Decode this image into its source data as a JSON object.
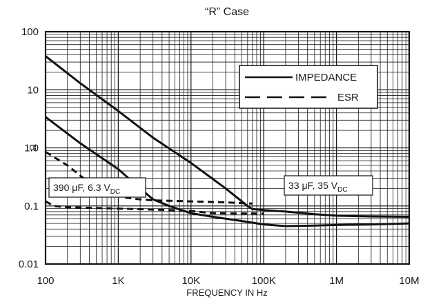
{
  "chart_data": {
    "type": "line",
    "title": "“R” Case",
    "xlabel": "FREQUENCY IN Hz",
    "ylabel": "Ω",
    "x_scale": "log",
    "y_scale": "log",
    "xlim": [
      100,
      10000000
    ],
    "ylim": [
      0.01,
      100
    ],
    "grid": true,
    "x_ticks": [
      {
        "value": 100,
        "label": "100"
      },
      {
        "value": 1000,
        "label": "1K"
      },
      {
        "value": 10000,
        "label": "10K"
      },
      {
        "value": 100000,
        "label": "100K"
      },
      {
        "value": 1000000,
        "label": "1M"
      },
      {
        "value": 10000000,
        "label": "10M"
      }
    ],
    "y_ticks": [
      {
        "value": 100,
        "label": "100"
      },
      {
        "value": 10,
        "label": "10"
      },
      {
        "value": 1,
        "label": "1.0"
      },
      {
        "value": 0.1,
        "label": "0.1"
      },
      {
        "value": 0.01,
        "label": "0.01"
      }
    ],
    "legend": {
      "placement": "top-right",
      "entries": [
        {
          "label": "IMPEDANCE",
          "style": "solid"
        },
        {
          "label": "ESR",
          "style": "dashed"
        }
      ]
    },
    "annotations": [
      {
        "main": "390 μF, 6.3 V",
        "sub": "DC"
      },
      {
        "main": "33 μF, 35 V",
        "sub": "DC"
      }
    ],
    "series": [
      {
        "type": "impedance",
        "capacitor": "33 μF, 35 V",
        "style": "solid",
        "points": [
          [
            100,
            38
          ],
          [
            300,
            13
          ],
          [
            1000,
            4.3
          ],
          [
            3000,
            1.5
          ],
          [
            10000,
            0.55
          ],
          [
            30000,
            0.2
          ],
          [
            60000,
            0.1
          ],
          [
            70000,
            0.088
          ],
          [
            100000,
            0.085
          ],
          [
            200000,
            0.08
          ],
          [
            500000,
            0.072
          ],
          [
            1000000,
            0.068
          ],
          [
            3000000,
            0.066
          ],
          [
            10000000,
            0.065
          ]
        ]
      },
      {
        "type": "impedance",
        "capacitor": "390 μF, 6.3 V",
        "style": "solid",
        "points": [
          [
            100,
            3.4
          ],
          [
            300,
            1.2
          ],
          [
            1000,
            0.43
          ],
          [
            2000,
            0.2
          ],
          [
            3000,
            0.13
          ],
          [
            5000,
            0.1
          ],
          [
            10000,
            0.075
          ],
          [
            20000,
            0.065
          ],
          [
            50000,
            0.055
          ],
          [
            100000,
            0.048
          ],
          [
            200000,
            0.045
          ],
          [
            500000,
            0.046
          ],
          [
            1000000,
            0.047
          ],
          [
            3000000,
            0.048
          ],
          [
            10000000,
            0.05
          ]
        ]
      },
      {
        "type": "esr",
        "capacitor": "390 μF, 6.3 V",
        "style": "dashed",
        "points": [
          [
            100,
            0.85
          ],
          [
            200,
            0.5
          ],
          [
            400,
            0.25
          ],
          [
            700,
            0.16
          ],
          [
            1000,
            0.15
          ],
          [
            1200,
            0.14
          ],
          [
            2000,
            0.13
          ],
          [
            3000,
            0.125
          ],
          [
            10000,
            0.12
          ],
          [
            30000,
            0.115
          ],
          [
            70000,
            0.11
          ]
        ]
      },
      {
        "type": "esr",
        "capacitor": "33 μF, 35 V",
        "style": "dashed",
        "points": [
          [
            100,
            0.12
          ],
          [
            130,
            0.1
          ],
          [
            200,
            0.095
          ],
          [
            1000,
            0.09
          ],
          [
            5000,
            0.085
          ],
          [
            10000,
            0.082
          ],
          [
            20000,
            0.075
          ],
          [
            50000,
            0.074
          ],
          [
            100000,
            0.074
          ]
        ]
      }
    ]
  }
}
